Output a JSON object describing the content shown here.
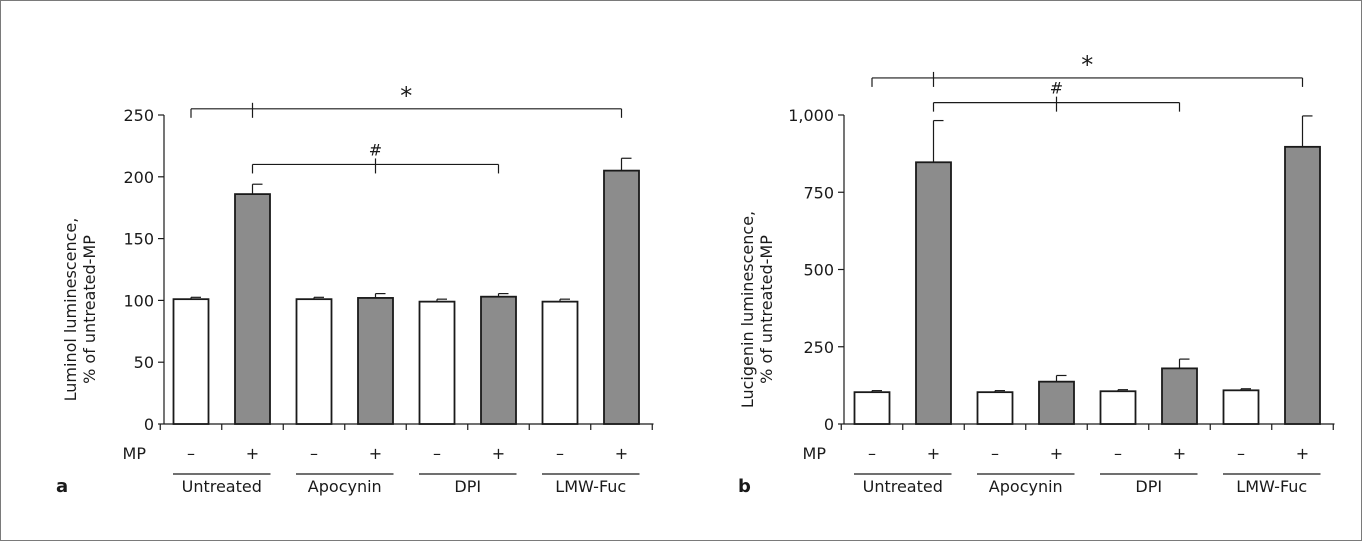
{
  "colors": {
    "open_bar": "#ffffff",
    "filled_bar": "#8c8c8c",
    "stroke": "#1a1a1a",
    "border": "#7a7a7a"
  },
  "chart_data": [
    {
      "type": "bar",
      "panel_label": "a",
      "ylabel_lines": [
        "Luminol luminescence,",
        "% of untreated-MP"
      ],
      "ylim": [
        0,
        250
      ],
      "yticks": [
        0,
        50,
        100,
        150,
        200,
        250
      ],
      "ytick_labels": [
        "0",
        "50",
        "100",
        "150",
        "200",
        "250"
      ],
      "row_label": "MP",
      "groups": [
        "Untreated",
        "Apocynin",
        "DPI",
        "LMW-Fuc"
      ],
      "mp_signs": [
        "–",
        "+"
      ],
      "values": [
        101,
        186,
        101,
        102,
        99,
        103,
        99,
        205
      ],
      "errors": [
        1.5,
        8,
        1.5,
        3.5,
        2,
        2.5,
        2,
        10
      ],
      "annotations": [
        {
          "symbol": "*",
          "bar_from": 0,
          "bar_to": 7,
          "drop_bar": 1,
          "bracket_y": 255
        },
        {
          "symbol": "#",
          "bar_from": 1,
          "bar_to": 5,
          "drop_bar": 3,
          "bracket_y": 210
        }
      ],
      "grid": false
    },
    {
      "type": "bar",
      "panel_label": "b",
      "ylabel_lines": [
        "Lucigenin luminescence,",
        "% of untreated-MP"
      ],
      "ylim": [
        0,
        1000
      ],
      "yticks": [
        0,
        250,
        500,
        750,
        1000
      ],
      "ytick_labels": [
        "0",
        "250",
        "500",
        "750",
        "1,000"
      ],
      "row_label": "MP",
      "groups": [
        "Untreated",
        "Apocynin",
        "DPI",
        "LMW-Fuc"
      ],
      "mp_signs": [
        "–",
        "+"
      ],
      "values": [
        103,
        847,
        103,
        137,
        106,
        180,
        109,
        897
      ],
      "errors": [
        5,
        135,
        5,
        20,
        5,
        30,
        5,
        100
      ],
      "annotations": [
        {
          "symbol": "*",
          "bar_from": 0,
          "bar_to": 7,
          "drop_bar": 1,
          "bracket_y": 1120
        },
        {
          "symbol": "#",
          "bar_from": 1,
          "bar_to": 5,
          "drop_bar": 3,
          "bracket_y": 1040
        }
      ],
      "grid": false
    }
  ]
}
